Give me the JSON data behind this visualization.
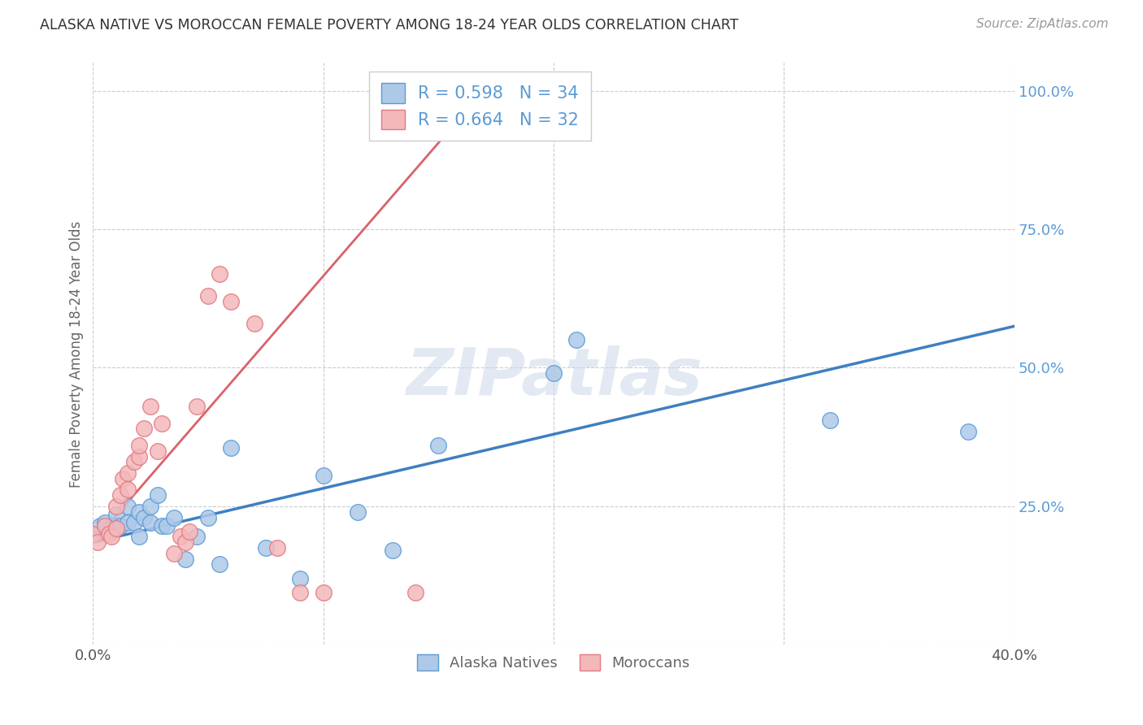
{
  "title": "ALASKA NATIVE VS MOROCCAN FEMALE POVERTY AMONG 18-24 YEAR OLDS CORRELATION CHART",
  "source": "Source: ZipAtlas.com",
  "ylabel_label": "Female Poverty Among 18-24 Year Olds",
  "xlim": [
    0.0,
    0.4
  ],
  "ylim": [
    0.0,
    1.05
  ],
  "alaska_R": 0.598,
  "alaska_N": 34,
  "moroccan_R": 0.664,
  "moroccan_N": 32,
  "alaska_color": "#aec9e8",
  "alaska_edge_color": "#5b9bd5",
  "moroccan_color": "#f4b8bb",
  "moroccan_edge_color": "#e07b80",
  "alaska_line_color": "#3f7fc1",
  "moroccan_line_color": "#d9626a",
  "ytick_color": "#5b9bd5",
  "background_color": "#ffffff",
  "watermark": "ZIPatlas",
  "alaska_x": [
    0.0,
    0.003,
    0.005,
    0.008,
    0.01,
    0.01,
    0.012,
    0.015,
    0.015,
    0.018,
    0.02,
    0.02,
    0.022,
    0.025,
    0.025,
    0.028,
    0.03,
    0.032,
    0.035,
    0.04,
    0.045,
    0.05,
    0.055,
    0.06,
    0.075,
    0.09,
    0.1,
    0.115,
    0.13,
    0.15,
    0.2,
    0.21,
    0.32,
    0.38
  ],
  "alaska_y": [
    0.2,
    0.215,
    0.22,
    0.21,
    0.215,
    0.235,
    0.215,
    0.22,
    0.25,
    0.22,
    0.195,
    0.24,
    0.23,
    0.22,
    0.25,
    0.27,
    0.215,
    0.215,
    0.23,
    0.155,
    0.195,
    0.23,
    0.145,
    0.355,
    0.175,
    0.12,
    0.305,
    0.24,
    0.17,
    0.36,
    0.49,
    0.55,
    0.405,
    0.385
  ],
  "moroccan_x": [
    0.0,
    0.002,
    0.005,
    0.007,
    0.008,
    0.01,
    0.01,
    0.012,
    0.013,
    0.015,
    0.015,
    0.018,
    0.02,
    0.02,
    0.022,
    0.025,
    0.028,
    0.03,
    0.035,
    0.038,
    0.04,
    0.042,
    0.045,
    0.05,
    0.055,
    0.06,
    0.07,
    0.08,
    0.09,
    0.1,
    0.14,
    0.16
  ],
  "moroccan_y": [
    0.2,
    0.185,
    0.215,
    0.2,
    0.195,
    0.21,
    0.25,
    0.27,
    0.3,
    0.28,
    0.31,
    0.33,
    0.34,
    0.36,
    0.39,
    0.43,
    0.35,
    0.4,
    0.165,
    0.195,
    0.185,
    0.205,
    0.43,
    0.63,
    0.67,
    0.62,
    0.58,
    0.175,
    0.095,
    0.095,
    0.095,
    1.01
  ],
  "alaska_line_x0": 0.0,
  "alaska_line_x1": 0.4,
  "alaska_line_y0": 0.185,
  "alaska_line_y1": 0.575,
  "moroccan_line_x0": 0.0,
  "moroccan_line_x1": 0.155,
  "moroccan_line_y0": 0.185,
  "moroccan_line_y1": 0.93
}
